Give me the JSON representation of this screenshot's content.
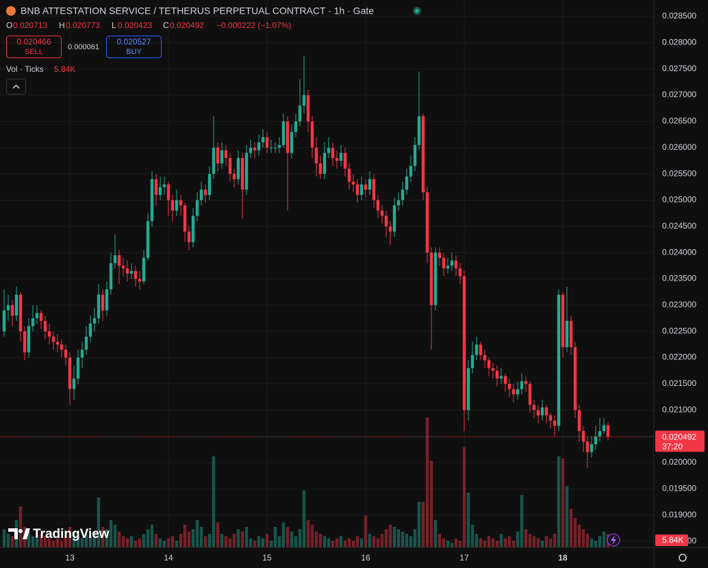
{
  "chart_data": {
    "type": "candlestick",
    "title": "BNB ATTESTATION SERVICE / TETHERUS PERPETUAL CONTRACT · 1h · Gate",
    "ohlc_labels": [
      "O",
      "H",
      "L",
      "C"
    ],
    "change": "−0.000222 (−1.07%)",
    "sell": {
      "price": 0.020466,
      "label": "SELL"
    },
    "spread": 6.1e-05,
    "buy": {
      "price": 0.020527,
      "label": "BUY"
    },
    "volume_title": "Vol · Ticks",
    "volume_value_label": "5.84K",
    "countdown": "37:20",
    "brand": "TradingView",
    "up_color": "#22ab94",
    "down_color": "#f23645",
    "grid": true,
    "xlim": [
      -1,
      158.17
    ],
    "xticks": [
      {
        "value": 16,
        "label": "13"
      },
      {
        "value": 40,
        "label": "14"
      },
      {
        "value": 64,
        "label": "15"
      },
      {
        "value": 88,
        "label": "16"
      },
      {
        "value": 112,
        "label": "17"
      },
      {
        "value": 136,
        "label": "18"
      }
    ],
    "ylim": [
      0.018383,
      0.028813
    ],
    "yticks": [
      {
        "value": 0.0185,
        "label": "0.018500"
      },
      {
        "value": 0.019,
        "label": "0.019000"
      },
      {
        "value": 0.0195,
        "label": "0.019500"
      },
      {
        "value": 0.02,
        "label": "0.020000"
      },
      {
        "value": 0.0205,
        "label": "0.020500"
      },
      {
        "value": 0.021,
        "label": "0.021000"
      },
      {
        "value": 0.0215,
        "label": "0.021500"
      },
      {
        "value": 0.022,
        "label": "0.022000"
      },
      {
        "value": 0.0225,
        "label": "0.022500"
      },
      {
        "value": 0.023,
        "label": "0.023000"
      },
      {
        "value": 0.0235,
        "label": "0.023500"
      },
      {
        "value": 0.024,
        "label": "0.024000"
      },
      {
        "value": 0.0245,
        "label": "0.024500"
      },
      {
        "value": 0.025,
        "label": "0.025000"
      },
      {
        "value": 0.0255,
        "label": "0.025500"
      },
      {
        "value": 0.026,
        "label": "0.026000"
      },
      {
        "value": 0.0265,
        "label": "0.026500"
      },
      {
        "value": 0.027,
        "label": "0.027000"
      },
      {
        "value": 0.0275,
        "label": "0.027500"
      },
      {
        "value": 0.028,
        "label": "0.028000"
      },
      {
        "value": 0.0285,
        "label": "0.028500"
      }
    ],
    "volume_ylim": [
      0,
      60000
    ],
    "open": [
      0.0225,
      0.0229,
      0.023,
      0.0228,
      0.0232,
      0.0225,
      0.0221,
      0.0226,
      0.02275,
      0.02285,
      0.0227,
      0.0225,
      0.0224,
      0.0223,
      0.02225,
      0.02215,
      0.022,
      0.0214,
      0.0216,
      0.022,
      0.02215,
      0.0224,
      0.02265,
      0.02275,
      0.0232,
      0.0229,
      0.0233,
      0.0238,
      0.02395,
      0.02375,
      0.0237,
      0.0236,
      0.02365,
      0.0235,
      0.02345,
      0.0239,
      0.0246,
      0.0254,
      0.0251,
      0.02525,
      0.0253,
      0.025,
      0.0248,
      0.025,
      0.0249,
      0.0244,
      0.0242,
      0.0247,
      0.025,
      0.0252,
      0.0251,
      0.0255,
      0.026,
      0.0257,
      0.02595,
      0.0258,
      0.0255,
      0.0254,
      0.0258,
      0.0252,
      0.0259,
      0.026,
      0.02595,
      0.0261,
      0.0262,
      0.026,
      0.026,
      0.026,
      0.02605,
      0.0265,
      0.0259,
      0.0263,
      0.0265,
      0.0268,
      0.027,
      0.0265,
      0.026,
      0.0257,
      0.0255,
      0.0259,
      0.026,
      0.0258,
      0.02575,
      0.0259,
      0.0256,
      0.02535,
      0.0253,
      0.0251,
      0.0253,
      0.0252,
      0.0254,
      0.025,
      0.0248,
      0.0247,
      0.0245,
      0.0244,
      0.0249,
      0.025,
      0.0252,
      0.02545,
      0.02565,
      0.02605,
      0.0266,
      0.02515,
      0.024,
      0.023,
      0.024,
      0.0239,
      0.0237,
      0.02375,
      0.02385,
      0.0237,
      0.02355,
      0.021,
      0.0218,
      0.02205,
      0.02225,
      0.02205,
      0.02195,
      0.0218,
      0.02175,
      0.0216,
      0.02165,
      0.0215,
      0.0214,
      0.0213,
      0.0214,
      0.02155,
      0.0215,
      0.0211,
      0.021,
      0.0209,
      0.02105,
      0.0209,
      0.0208,
      0.0207,
      0.0232,
      0.0222,
      0.0227,
      0.0222,
      0.021,
      0.0206,
      0.0204,
      0.0202,
      0.02035,
      0.0205,
      0.0206,
      0.020713
    ],
    "high": [
      0.0233,
      0.0232,
      0.0231,
      0.02335,
      0.02325,
      0.0226,
      0.02275,
      0.023,
      0.023,
      0.0229,
      0.0228,
      0.02265,
      0.0225,
      0.02245,
      0.02235,
      0.02225,
      0.0221,
      0.02185,
      0.02215,
      0.0223,
      0.0226,
      0.0228,
      0.02295,
      0.0234,
      0.0233,
      0.02345,
      0.024,
      0.02435,
      0.02405,
      0.0239,
      0.02385,
      0.0238,
      0.02375,
      0.02365,
      0.02405,
      0.02475,
      0.02555,
      0.0255,
      0.02545,
      0.02545,
      0.02535,
      0.0251,
      0.0252,
      0.0251,
      0.02495,
      0.0245,
      0.02485,
      0.02515,
      0.02535,
      0.0253,
      0.02565,
      0.0266,
      0.0261,
      0.0261,
      0.02605,
      0.0259,
      0.0256,
      0.02595,
      0.0259,
      0.02605,
      0.02615,
      0.0261,
      0.02625,
      0.02635,
      0.0263,
      0.02615,
      0.0261,
      0.0262,
      0.02665,
      0.0266,
      0.02645,
      0.02665,
      0.0273,
      0.02775,
      0.0271,
      0.0266,
      0.0262,
      0.02585,
      0.0261,
      0.0262,
      0.0261,
      0.02595,
      0.02605,
      0.026,
      0.0257,
      0.0255,
      0.0254,
      0.02545,
      0.0254,
      0.02555,
      0.0255,
      0.0251,
      0.0249,
      0.0248,
      0.0246,
      0.02505,
      0.02515,
      0.02535,
      0.0256,
      0.02585,
      0.0262,
      0.02745,
      0.02665,
      0.02525,
      0.0241,
      0.0241,
      0.0241,
      0.024,
      0.0239,
      0.024,
      0.02395,
      0.0238,
      0.02365,
      0.02195,
      0.0223,
      0.0224,
      0.0223,
      0.02215,
      0.022,
      0.0219,
      0.02185,
      0.0218,
      0.0217,
      0.0216,
      0.0215,
      0.02155,
      0.0217,
      0.02165,
      0.02155,
      0.0212,
      0.0211,
      0.0212,
      0.0211,
      0.02095,
      0.0209,
      0.0233,
      0.02325,
      0.02335,
      0.0228,
      0.0223,
      0.0211,
      0.0207,
      0.0205,
      0.0205,
      0.0207,
      0.02085,
      0.02085,
      0.020773
    ],
    "low": [
      0.0224,
      0.0227,
      0.0226,
      0.0227,
      0.0223,
      0.02195,
      0.022,
      0.0225,
      0.02265,
      0.02255,
      0.02235,
      0.02225,
      0.02215,
      0.0221,
      0.022,
      0.02185,
      0.0211,
      0.0212,
      0.0215,
      0.0218,
      0.02205,
      0.0223,
      0.0225,
      0.02265,
      0.0227,
      0.0228,
      0.0232,
      0.0237,
      0.0234,
      0.02355,
      0.02345,
      0.0235,
      0.02335,
      0.0233,
      0.0234,
      0.02385,
      0.0245,
      0.0249,
      0.025,
      0.0251,
      0.0247,
      0.0246,
      0.0247,
      0.0247,
      0.0242,
      0.02405,
      0.0241,
      0.0246,
      0.0249,
      0.02495,
      0.025,
      0.0254,
      0.02555,
      0.0256,
      0.02565,
      0.02535,
      0.02525,
      0.0253,
      0.02465,
      0.0251,
      0.0258,
      0.0258,
      0.02585,
      0.026,
      0.0259,
      0.0259,
      0.0259,
      0.0259,
      0.026,
      0.0248,
      0.0258,
      0.0262,
      0.0264,
      0.02665,
      0.0263,
      0.0258,
      0.02545,
      0.0254,
      0.0254,
      0.0258,
      0.02565,
      0.0256,
      0.02565,
      0.02545,
      0.0252,
      0.02515,
      0.02495,
      0.025,
      0.02505,
      0.0251,
      0.02485,
      0.02465,
      0.02455,
      0.0243,
      0.02415,
      0.0243,
      0.0248,
      0.0249,
      0.0251,
      0.02535,
      0.02555,
      0.02595,
      0.025,
      0.0238,
      0.02215,
      0.0229,
      0.02375,
      0.02355,
      0.0236,
      0.02365,
      0.02355,
      0.0234,
      0.0206,
      0.0208,
      0.0217,
      0.02195,
      0.02195,
      0.0218,
      0.02165,
      0.0216,
      0.02145,
      0.0215,
      0.02135,
      0.02125,
      0.02115,
      0.0212,
      0.0213,
      0.02135,
      0.02095,
      0.02085,
      0.02075,
      0.0208,
      0.02075,
      0.02065,
      0.0205,
      0.0206,
      0.022,
      0.0221,
      0.02205,
      0.02085,
      0.0204,
      0.0202,
      0.0199,
      0.0201,
      0.02025,
      0.0204,
      0.02055,
      0.020423
    ],
    "close": [
      0.0229,
      0.023,
      0.0228,
      0.0232,
      0.0225,
      0.0221,
      0.0226,
      0.02275,
      0.02285,
      0.0227,
      0.0225,
      0.0224,
      0.0223,
      0.02225,
      0.02215,
      0.022,
      0.0214,
      0.0216,
      0.022,
      0.02215,
      0.0224,
      0.02265,
      0.02275,
      0.0232,
      0.0229,
      0.0233,
      0.0238,
      0.02395,
      0.02375,
      0.0237,
      0.0236,
      0.02365,
      0.0235,
      0.02345,
      0.0239,
      0.0246,
      0.0254,
      0.0251,
      0.02525,
      0.0253,
      0.025,
      0.0248,
      0.025,
      0.0249,
      0.0244,
      0.0242,
      0.0247,
      0.025,
      0.0252,
      0.0251,
      0.0255,
      0.026,
      0.0257,
      0.02595,
      0.0258,
      0.0255,
      0.0254,
      0.0258,
      0.0252,
      0.0259,
      0.026,
      0.02595,
      0.0261,
      0.0262,
      0.026,
      0.026,
      0.026,
      0.02605,
      0.0265,
      0.0259,
      0.0263,
      0.0265,
      0.0268,
      0.027,
      0.0265,
      0.026,
      0.0257,
      0.0255,
      0.0259,
      0.026,
      0.0258,
      0.02575,
      0.0259,
      0.0256,
      0.02535,
      0.0253,
      0.0251,
      0.0253,
      0.0252,
      0.0254,
      0.025,
      0.0248,
      0.0247,
      0.0245,
      0.0244,
      0.0249,
      0.025,
      0.0252,
      0.02545,
      0.02565,
      0.02605,
      0.0266,
      0.02515,
      0.024,
      0.023,
      0.024,
      0.0239,
      0.0237,
      0.02375,
      0.02385,
      0.0237,
      0.02355,
      0.021,
      0.0218,
      0.02205,
      0.02225,
      0.02205,
      0.02195,
      0.0218,
      0.02175,
      0.0216,
      0.02165,
      0.0215,
      0.0214,
      0.0213,
      0.0214,
      0.02155,
      0.0215,
      0.0211,
      0.021,
      0.0209,
      0.02105,
      0.0209,
      0.0208,
      0.0207,
      0.0232,
      0.0222,
      0.0227,
      0.0222,
      0.021,
      0.0206,
      0.0204,
      0.0202,
      0.02035,
      0.0205,
      0.0206,
      0.020713,
      0.020492
    ],
    "volume": [
      8000,
      6000,
      5000,
      12000,
      18000,
      9000,
      7000,
      5000,
      4000,
      6000,
      5000,
      4000,
      3000,
      4000,
      3000,
      5000,
      9000,
      7000,
      5000,
      4000,
      6000,
      5000,
      7000,
      22000,
      9000,
      8000,
      12000,
      10000,
      7000,
      5000,
      4000,
      5000,
      3000,
      4000,
      6000,
      8000,
      10000,
      6000,
      4000,
      3000,
      4000,
      5000,
      3000,
      6000,
      10000,
      7000,
      8000,
      12000,
      9000,
      5000,
      6000,
      40000,
      11000,
      6000,
      5000,
      4000,
      6000,
      8000,
      7000,
      9000,
      4000,
      3000,
      5000,
      4000,
      6000,
      3000,
      9000,
      5000,
      11000,
      9000,
      7000,
      5000,
      8000,
      25000,
      12000,
      10000,
      7000,
      6000,
      5000,
      4000,
      3000,
      4000,
      5000,
      3000,
      4000,
      3000,
      5000,
      4000,
      14000,
      6000,
      5000,
      4000,
      6000,
      8000,
      10000,
      9000,
      8000,
      7000,
      6000,
      5000,
      8000,
      20000,
      20000,
      57000,
      38000,
      12000,
      6000,
      4000,
      3000,
      2000,
      4000,
      3000,
      44000,
      24000,
      10000,
      6000,
      4000,
      3000,
      5000,
      4000,
      3000,
      6000,
      4000,
      5000,
      3000,
      7000,
      23000,
      8000,
      6000,
      5000,
      4000,
      3000,
      5000,
      4000,
      6000,
      40000,
      39000,
      27000,
      17000,
      13000,
      10000,
      8000,
      6000,
      4000,
      3000,
      5000,
      7000,
      5840
    ]
  }
}
